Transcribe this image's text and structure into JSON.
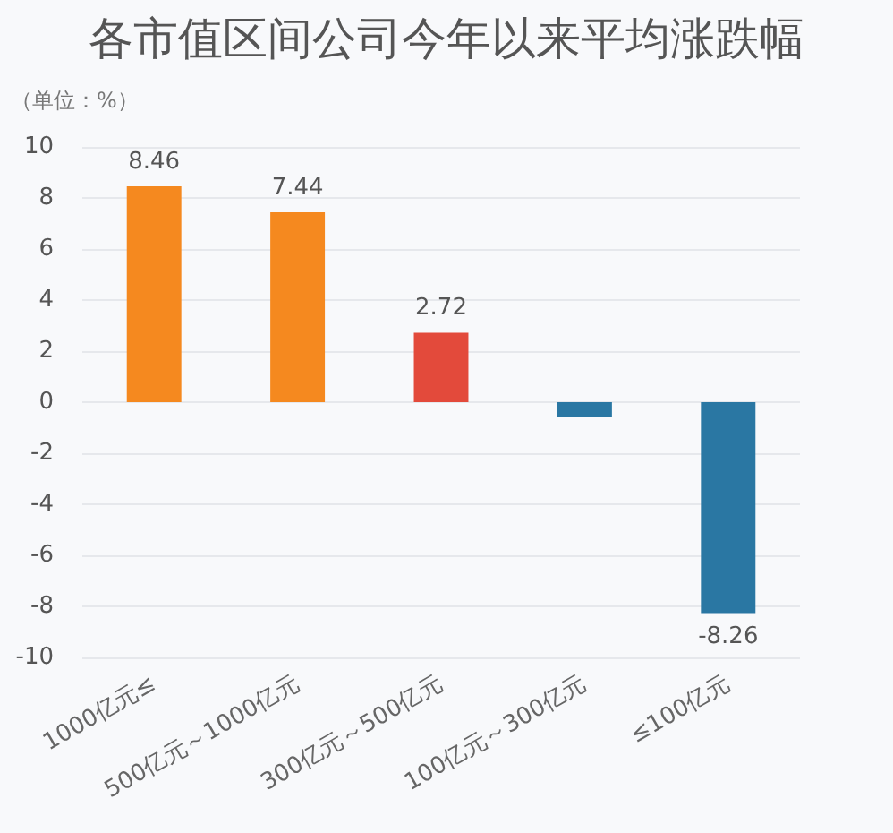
{
  "chart_data": {
    "type": "bar",
    "title": "各市值区间公司今年以来平均涨跌幅",
    "ylabel": "（单位：%）",
    "categories": [
      "1000亿元≤",
      "500亿元～1000亿元",
      "300亿元～500亿元",
      "100亿元～300亿元",
      "≤100亿元"
    ],
    "values": [
      8.46,
      7.44,
      2.72,
      -0.6,
      -8.26
    ],
    "colors": [
      "#f5891f",
      "#f5891f",
      "#e34a3b",
      "#2a77a3",
      "#2a77a3"
    ],
    "value_labels": [
      "8.46",
      "7.44",
      "2.72",
      null,
      "-8.26"
    ],
    "ylim": [
      -10,
      10
    ],
    "yticks": [
      -10,
      -8,
      -6,
      -4,
      -2,
      0,
      2,
      4,
      6,
      8,
      10
    ],
    "grid": "y"
  }
}
